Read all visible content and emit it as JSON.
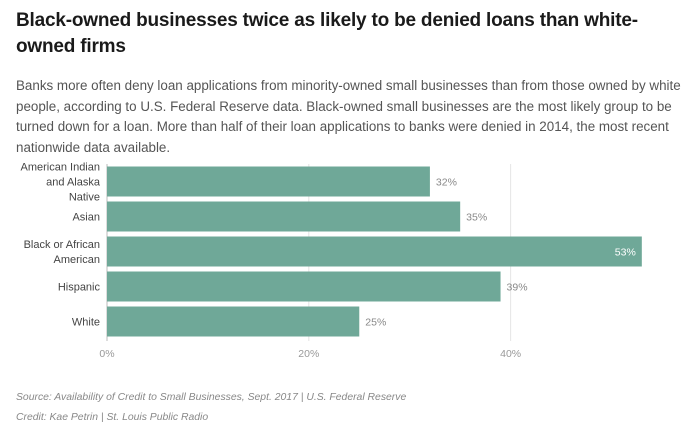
{
  "header": {
    "title": "Black-owned businesses twice as likely to be denied loans than white-owned firms",
    "subtitle": "Banks more often deny loan applications from minority-owned small businesses than from those owned by white people, according to U.S. Federal Reserve data. Black-owned small businesses are the most likely group to be turned down for a loan. More than half of their loan applications to banks were denied in 2014, the most recent nationwide data available."
  },
  "footer": {
    "source": "Source: Availability of Credit to Small Businesses, Sept. 2017 | U.S. Federal Reserve",
    "credit": "Credit: Kae Petrin | St. Louis Public Radio"
  },
  "colors": {
    "bar": "#6fa898",
    "grid": "#e4e4e4",
    "axis": "#bbbbbb"
  },
  "chart_data": {
    "type": "bar",
    "orientation": "horizontal",
    "categories": [
      [
        "American Indian",
        "and Alaska",
        "Native"
      ],
      [
        "Asian"
      ],
      [
        "Black or African",
        "American"
      ],
      [
        "Hispanic"
      ],
      [
        "White"
      ]
    ],
    "values": [
      32,
      35,
      53,
      39,
      25
    ],
    "value_labels": [
      "32%",
      "35%",
      "53%",
      "39%",
      "25%"
    ],
    "xlim": [
      0,
      55
    ],
    "xticks": [
      0,
      20,
      40
    ],
    "xtick_labels": [
      "0%",
      "20%",
      "40%"
    ],
    "grid": true
  }
}
